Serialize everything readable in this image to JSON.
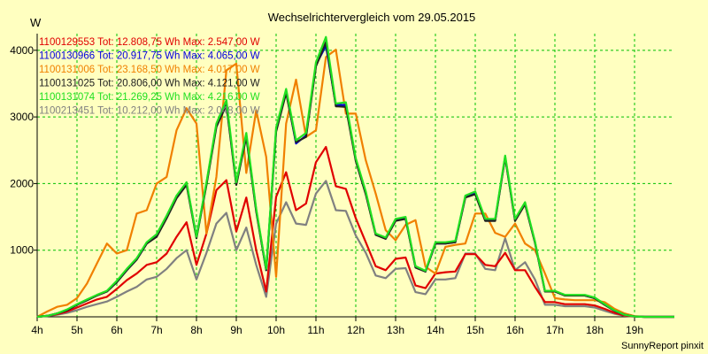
{
  "chart_data": {
    "type": "line",
    "title": "Wechselrichtervergleich vom 29.05.2015",
    "ylabel": "W",
    "xlabel": "",
    "footer": "SunnyReport pinxit",
    "xlim": [
      4,
      20
    ],
    "ylim": [
      0,
      4250
    ],
    "y_ticks": [
      1000,
      2000,
      3000,
      4000
    ],
    "x_ticks": [
      {
        "v": 4,
        "label": "4h"
      },
      {
        "v": 5,
        "label": "5h"
      },
      {
        "v": 6,
        "label": "6h"
      },
      {
        "v": 7,
        "label": "7h"
      },
      {
        "v": 8,
        "label": "8h"
      },
      {
        "v": 9,
        "label": "9h"
      },
      {
        "v": 10,
        "label": "10h"
      },
      {
        "v": 11,
        "label": "11h"
      },
      {
        "v": 12,
        "label": "12h"
      },
      {
        "v": 13,
        "label": "13h"
      },
      {
        "v": 14,
        "label": "14h"
      },
      {
        "v": 15,
        "label": "15h"
      },
      {
        "v": 16,
        "label": "16h"
      },
      {
        "v": 17,
        "label": "17h"
      },
      {
        "v": 18,
        "label": "18h"
      },
      {
        "v": 19,
        "label": "19h"
      }
    ],
    "grid": true,
    "legend_position": "top-left",
    "x": [
      4,
      4.25,
      4.5,
      4.75,
      5,
      5.25,
      5.5,
      5.75,
      6,
      6.25,
      6.5,
      6.75,
      7,
      7.25,
      7.5,
      7.75,
      8,
      8.25,
      8.5,
      8.75,
      9,
      9.25,
      9.5,
      9.75,
      10,
      10.25,
      10.5,
      10.75,
      11,
      11.25,
      11.5,
      11.75,
      12,
      12.25,
      12.5,
      12.75,
      13,
      13.25,
      13.5,
      13.75,
      14,
      14.25,
      14.5,
      14.75,
      15,
      15.25,
      15.5,
      15.75,
      16,
      16.25,
      16.5,
      16.75,
      17,
      17.25,
      17.5,
      17.75,
      18,
      18.25,
      18.5,
      18.75,
      19,
      19.25,
      19.5,
      19.75,
      20
    ],
    "series": [
      {
        "name": "1100129553 Tot: 12.808,75 Wh Max: 2.547,00 W",
        "color": "#e00000",
        "values": [
          0,
          15,
          40,
          80,
          140,
          200,
          260,
          300,
          420,
          550,
          650,
          780,
          820,
          950,
          1200,
          1420,
          780,
          1250,
          1900,
          2050,
          1280,
          1790,
          1000,
          380,
          1800,
          2170,
          1600,
          1700,
          2320,
          2550,
          1960,
          1920,
          1480,
          1120,
          760,
          700,
          870,
          890,
          470,
          430,
          650,
          670,
          680,
          940,
          940,
          780,
          760,
          960,
          700,
          700,
          450,
          220,
          220,
          190,
          190,
          190,
          170,
          120,
          60,
          20,
          5,
          0,
          0,
          0,
          0
        ]
      },
      {
        "name": "1100130966 Tot: 20.917,75 Wh Max: 4.065,00 W",
        "color": "#0000e0",
        "values": [
          0,
          15,
          50,
          100,
          180,
          250,
          320,
          380,
          520,
          700,
          860,
          1100,
          1220,
          1500,
          1800,
          2000,
          1200,
          2000,
          2880,
          3200,
          2000,
          2720,
          1600,
          700,
          2800,
          3380,
          2600,
          2720,
          3780,
          4070,
          3180,
          3180,
          2360,
          1860,
          1240,
          1180,
          1450,
          1480,
          750,
          680,
          1100,
          1100,
          1120,
          1800,
          1850,
          1450,
          1450,
          2400,
          1450,
          1700,
          1120,
          380,
          380,
          320,
          320,
          320,
          280,
          180,
          90,
          30,
          5,
          0,
          0,
          0,
          0
        ]
      },
      {
        "name": "1100131006 Tot: 23.168,50 Wh Max: 4.017,00 W",
        "color": "#f08000",
        "values": [
          0,
          80,
          150,
          180,
          280,
          500,
          800,
          1100,
          950,
          1000,
          1550,
          1600,
          2000,
          2100,
          2800,
          3130,
          2900,
          1250,
          2100,
          3700,
          3800,
          2160,
          3100,
          2400,
          600,
          2900,
          3560,
          2700,
          2800,
          3900,
          4010,
          3050,
          3050,
          2350,
          1850,
          1300,
          1150,
          1380,
          1450,
          750,
          650,
          1050,
          1080,
          1100,
          1550,
          1550,
          1260,
          1200,
          1400,
          1100,
          1000,
          650,
          280,
          260,
          250,
          250,
          250,
          220,
          120,
          50,
          10,
          0,
          0,
          0,
          0
        ]
      },
      {
        "name": "1100131025 Tot: 20.806,00 Wh Max: 4.121,00 W",
        "color": "#202020",
        "values": [
          0,
          15,
          50,
          100,
          180,
          250,
          320,
          380,
          520,
          700,
          860,
          1100,
          1200,
          1480,
          1780,
          1980,
          1180,
          1980,
          2850,
          3180,
          1980,
          2700,
          1580,
          700,
          2780,
          3360,
          2620,
          2700,
          3760,
          4120,
          3160,
          3150,
          2340,
          1840,
          1230,
          1170,
          1440,
          1470,
          740,
          680,
          1100,
          1100,
          1120,
          1790,
          1840,
          1440,
          1440,
          2390,
          1440,
          1690,
          1110,
          380,
          380,
          320,
          320,
          320,
          280,
          180,
          90,
          30,
          5,
          0,
          0,
          0,
          0
        ]
      },
      {
        "name": "1100131074 Tot: 21.269,25 Wh Max: 4.216,00 W",
        "color": "#20e020",
        "values": [
          0,
          15,
          50,
          110,
          190,
          260,
          330,
          390,
          540,
          720,
          880,
          1120,
          1240,
          1520,
          1820,
          2020,
          1200,
          2020,
          2900,
          3250,
          2020,
          2760,
          1620,
          720,
          2840,
          3420,
          2650,
          2760,
          3820,
          4200,
          3200,
          3220,
          2380,
          1880,
          1250,
          1190,
          1470,
          1500,
          760,
          690,
          1120,
          1120,
          1140,
          1820,
          1880,
          1470,
          1470,
          2420,
          1470,
          1720,
          1130,
          390,
          390,
          330,
          330,
          330,
          290,
          190,
          95,
          30,
          5,
          0,
          0,
          0,
          0
        ]
      },
      {
        "name": "1100213451 Tot: 10.212,00 Wh Max: 2.048,00 W",
        "color": "#808080",
        "values": [
          0,
          10,
          30,
          60,
          100,
          150,
          190,
          230,
          300,
          380,
          450,
          560,
          600,
          720,
          880,
          1000,
          560,
          960,
          1400,
          1560,
          1000,
          1340,
          780,
          300,
          1400,
          1720,
          1400,
          1380,
          1850,
          2040,
          1600,
          1590,
          1220,
          960,
          620,
          580,
          720,
          730,
          370,
          340,
          560,
          560,
          580,
          950,
          950,
          720,
          700,
          1180,
          700,
          820,
          560,
          180,
          180,
          160,
          160,
          160,
          140,
          90,
          45,
          15,
          5,
          0,
          0,
          0,
          0
        ]
      }
    ]
  }
}
